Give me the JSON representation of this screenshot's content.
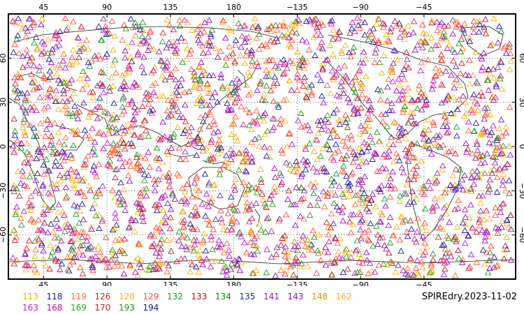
{
  "title": "SPIREdry.2023-11-02",
  "map": {
    "projection": "cylindrical-equidistant",
    "lon_range": [
      20,
      380
    ],
    "lat_range": [
      -90,
      90
    ],
    "marker": "triangle",
    "grid": "dotted",
    "top_lon_labels": [
      "45",
      "90",
      "135",
      "180",
      "−135",
      "−90",
      "−45"
    ],
    "bottom_lon_labels": [
      "45",
      "90",
      "135",
      "180",
      "−135",
      "−90",
      "−45"
    ],
    "left_lat_labels": [
      "60",
      "30",
      "0",
      "−30",
      "−60"
    ],
    "right_lat_labels": [
      "60",
      "30",
      "0",
      "−30",
      "−60"
    ]
  },
  "legend": {
    "row1": [
      {
        "label": "113",
        "color": "#e8b400"
      },
      {
        "label": "118",
        "color": "#1a1aa8"
      },
      {
        "label": "119",
        "color": "#ff6633"
      },
      {
        "label": "126",
        "color": "#cc1f1f"
      },
      {
        "label": "128",
        "color": "#ffb020"
      },
      {
        "label": "129",
        "color": "#ff4444"
      },
      {
        "label": "132",
        "color": "#1f9a1f"
      },
      {
        "label": "133",
        "color": "#b01010"
      },
      {
        "label": "134",
        "color": "#118811"
      },
      {
        "label": "135",
        "color": "#1f1fa0"
      },
      {
        "label": "141",
        "color": "#a010c0"
      },
      {
        "label": "143",
        "color": "#9010b0"
      },
      {
        "label": "148",
        "color": "#d09000"
      },
      {
        "label": "162",
        "color": "#ffaa33"
      }
    ],
    "row2": [
      {
        "label": "163",
        "color": "#c020c0"
      },
      {
        "label": "168",
        "color": "#c010a0"
      },
      {
        "label": "169",
        "color": "#22aa22"
      },
      {
        "label": "170",
        "color": "#cc2222"
      },
      {
        "label": "193",
        "color": "#1b8a1b"
      },
      {
        "label": "194",
        "color": "#1515a5"
      }
    ]
  },
  "point_colors": [
    "#a010c0",
    "#ff6633",
    "#e8b400",
    "#1f9a1f",
    "#1a1aa8",
    "#cc1f1f",
    "#c020c0",
    "#ffb020",
    "#9010b0",
    "#ff4444"
  ]
}
